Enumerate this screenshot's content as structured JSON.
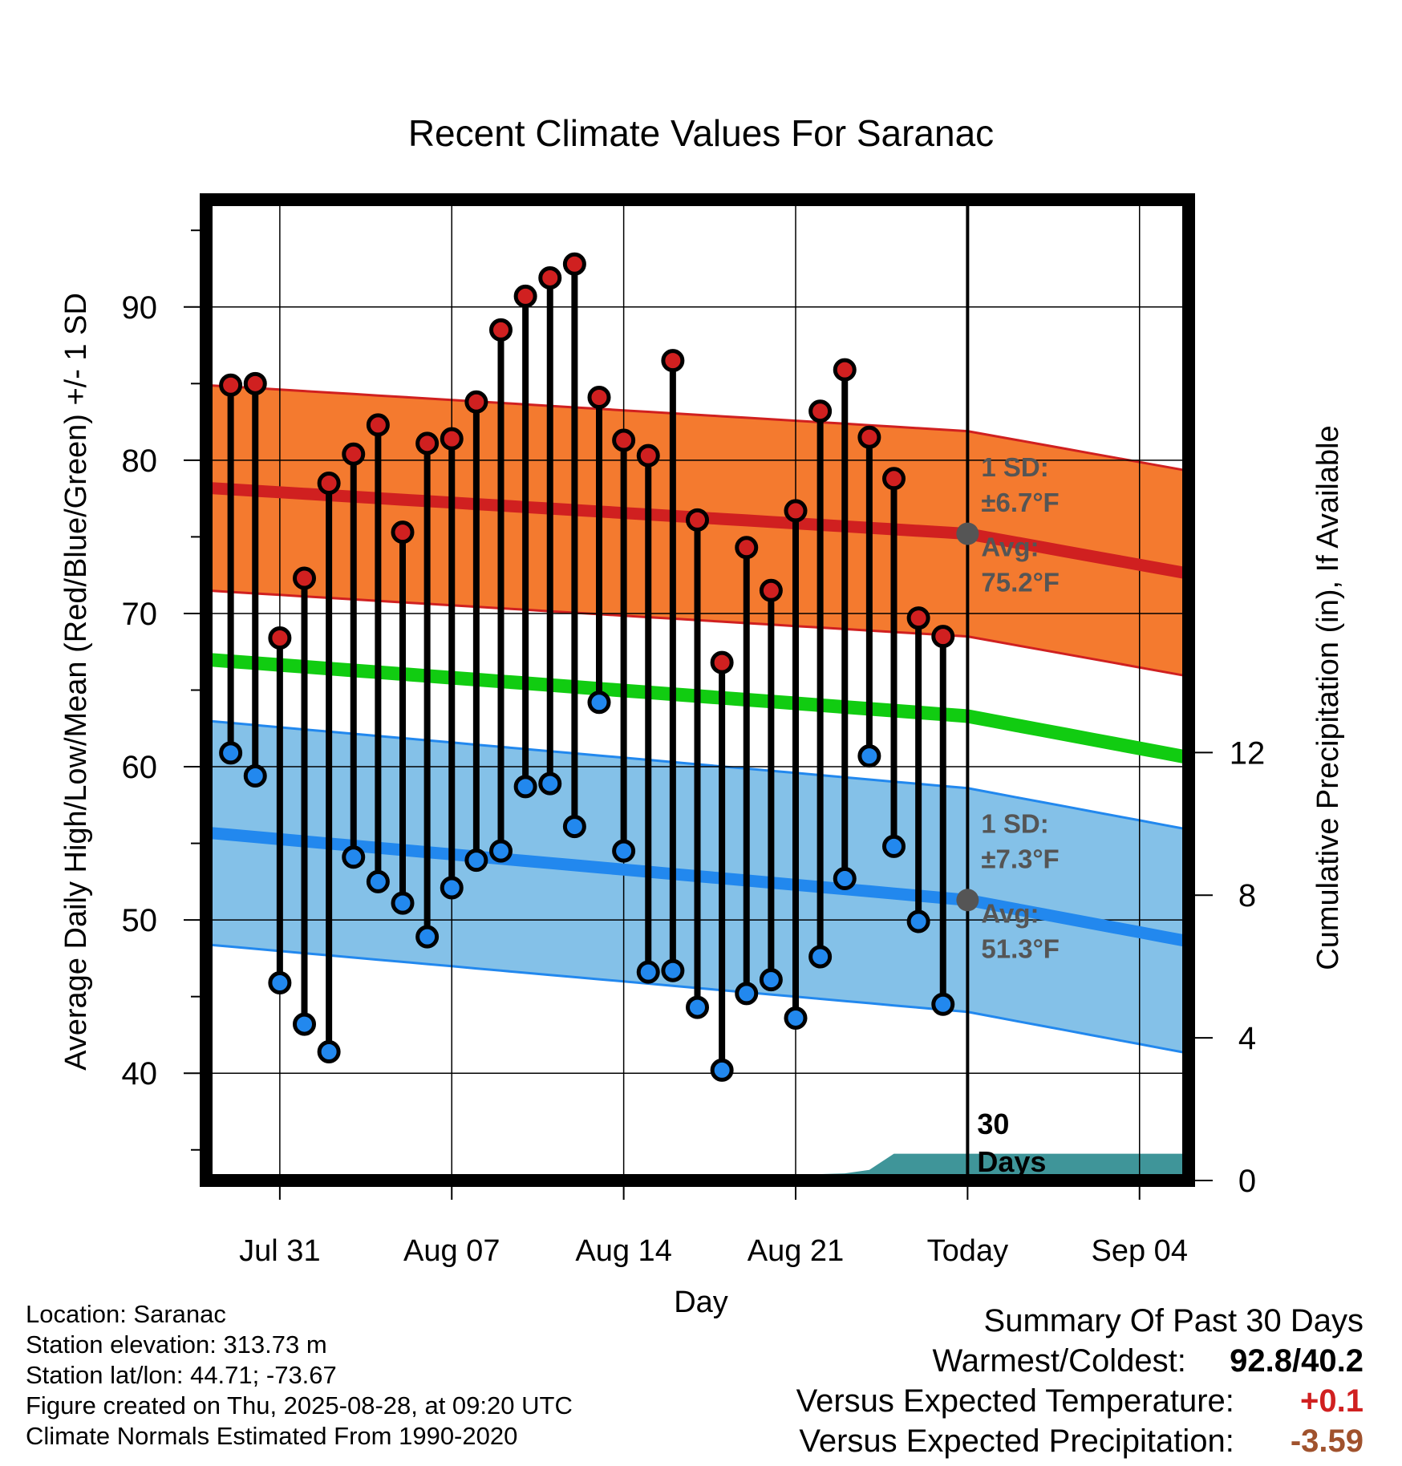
{
  "chart_data": {
    "type": "line",
    "title": "Recent Climate Values For Saranac",
    "xlabel": "Day",
    "ylabel": "Average Daily High/Low/Mean (Red/Blue/Green) +/- 1 SD",
    "y2label": "Cumulative Precipitation (in), If Available",
    "ylim": [
      33,
      97
    ],
    "y2lim": [
      0,
      27.5
    ],
    "yticks": [
      40,
      50,
      60,
      70,
      80,
      90
    ],
    "y2ticks": [
      0,
      4,
      8,
      12
    ],
    "x_tick_labels": [
      "Jul 31",
      "Aug 07",
      "Aug 14",
      "Aug 21",
      "Today",
      "Sep 04"
    ],
    "x_tick_dates": [
      "2025-07-31",
      "2025-08-07",
      "2025-08-14",
      "2025-08-21",
      "2025-08-28",
      "2025-09-04"
    ],
    "xlim": [
      "2025-07-28",
      "2025-09-06"
    ],
    "grid": true,
    "today": "2025-08-28",
    "today_label": "30 Days",
    "days": [
      "2025-07-29",
      "2025-07-30",
      "2025-07-31",
      "2025-08-01",
      "2025-08-02",
      "2025-08-03",
      "2025-08-04",
      "2025-08-05",
      "2025-08-06",
      "2025-08-07",
      "2025-08-08",
      "2025-08-09",
      "2025-08-10",
      "2025-08-11",
      "2025-08-12",
      "2025-08-13",
      "2025-08-14",
      "2025-08-15",
      "2025-08-16",
      "2025-08-17",
      "2025-08-18",
      "2025-08-19",
      "2025-08-20",
      "2025-08-21",
      "2025-08-22",
      "2025-08-23",
      "2025-08-24",
      "2025-08-25",
      "2025-08-26",
      "2025-08-27"
    ],
    "series": [
      {
        "name": "High",
        "color": "#d02020",
        "values": [
          84.9,
          85.0,
          68.4,
          72.3,
          78.5,
          80.4,
          82.3,
          75.3,
          81.1,
          81.4,
          83.8,
          88.5,
          90.7,
          91.9,
          92.8,
          84.1,
          81.3,
          80.3,
          86.5,
          76.1,
          66.8,
          74.3,
          71.5,
          76.7,
          83.2,
          85.9,
          81.5,
          78.8,
          69.7,
          68.5
        ]
      },
      {
        "name": "Low",
        "color": "#2288ee",
        "values": [
          60.9,
          59.4,
          45.9,
          43.2,
          41.4,
          54.1,
          52.5,
          51.1,
          48.9,
          52.1,
          53.9,
          54.5,
          58.7,
          58.9,
          56.1,
          64.2,
          54.5,
          46.6,
          46.7,
          44.3,
          40.2,
          45.2,
          46.1,
          43.6,
          47.6,
          52.7,
          60.7,
          54.8,
          49.9,
          44.5
        ]
      }
    ],
    "normal_high": {
      "dates": [
        "2025-07-28",
        "2025-08-28",
        "2025-09-06"
      ],
      "values": [
        78.2,
        75.2,
        72.6
      ],
      "sd": 6.7,
      "band_color": "#f47a2f",
      "line_color": "#d02020"
    },
    "normal_low": {
      "dates": [
        "2025-07-28",
        "2025-08-28",
        "2025-09-06"
      ],
      "values": [
        55.7,
        51.3,
        48.6
      ],
      "sd": 7.3,
      "band_color": "#84c1e8",
      "line_color": "#2288ee"
    },
    "normal_mean": {
      "dates": [
        "2025-07-28",
        "2025-08-28",
        "2025-09-06"
      ],
      "values": [
        67.0,
        63.3,
        60.6
      ],
      "color": "#11cc11"
    },
    "precip_normal": {
      "color": "#3f9599",
      "dates": [
        "2025-07-28",
        "2025-08-17",
        "2025-08-18",
        "2025-08-23",
        "2025-08-24",
        "2025-08-25",
        "2025-09-06"
      ],
      "values": [
        0,
        0,
        0.1,
        0.2,
        0.3,
        0.75,
        0.75
      ]
    },
    "annotations": {
      "high_sd_label": "1 SD:",
      "high_sd_value": "±6.7°F",
      "high_avg_label": "Avg:",
      "high_avg_value": "75.2°F",
      "low_sd_label": "1 SD:",
      "low_sd_value": "±7.3°F",
      "low_avg_label": "Avg:",
      "low_avg_value": "51.3°F",
      "color": "#555555"
    }
  },
  "footer": {
    "location": "Location: Saranac",
    "elevation": "Station elevation: 313.73 m",
    "latlon": "Station lat/lon: 44.71; -73.67",
    "created": "Figure created on Thu, 2025-08-28, at 09:20 UTC",
    "normals": "Climate Normals Estimated From 1990-2020"
  },
  "summary": {
    "title": "Summary Of Past 30 Days",
    "warmest_label": "Warmest/Coldest:",
    "warmest_value": "92.8/40.2",
    "temp_label": "Versus Expected Temperature:",
    "temp_value": "+0.1",
    "temp_color": "#d02020",
    "precip_label": "Versus Expected Precipitation:",
    "precip_value": "-3.59",
    "precip_color": "#a0522d"
  }
}
